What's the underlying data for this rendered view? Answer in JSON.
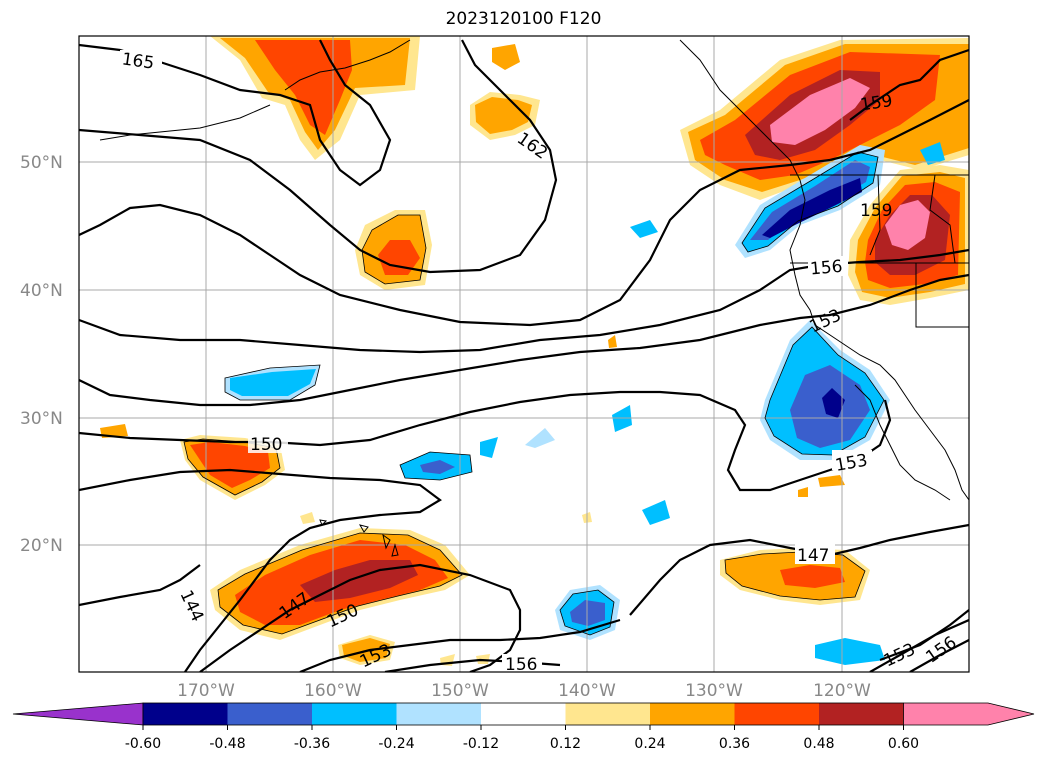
{
  "title": "2023120100 F120",
  "map": {
    "lat_labels": [
      "50°N",
      "40°N",
      "30°N",
      "20°N"
    ],
    "lon_labels": [
      "170°W",
      "160°W",
      "150°W",
      "140°W",
      "130°W",
      "120°W"
    ],
    "grid": true,
    "contour_labels": [
      "165",
      "162",
      "159",
      "159",
      "156",
      "153",
      "150",
      "147",
      "150",
      "153",
      "153",
      "147",
      "144",
      "156",
      "153",
      "156"
    ]
  },
  "colorbar": {
    "ticks": [
      "-0.60",
      "-0.48",
      "-0.36",
      "-0.24",
      "-0.12",
      "0.12",
      "0.24",
      "0.36",
      "0.48",
      "0.60"
    ],
    "colors": [
      "#9932cc",
      "#00008b",
      "#3a5fcd",
      "#00bfff",
      "#b0e2ff",
      "#ffffff",
      "#ffe68f",
      "#ffa500",
      "#ff4500",
      "#b22222",
      "#ff82ab"
    ],
    "extend": "both"
  }
}
